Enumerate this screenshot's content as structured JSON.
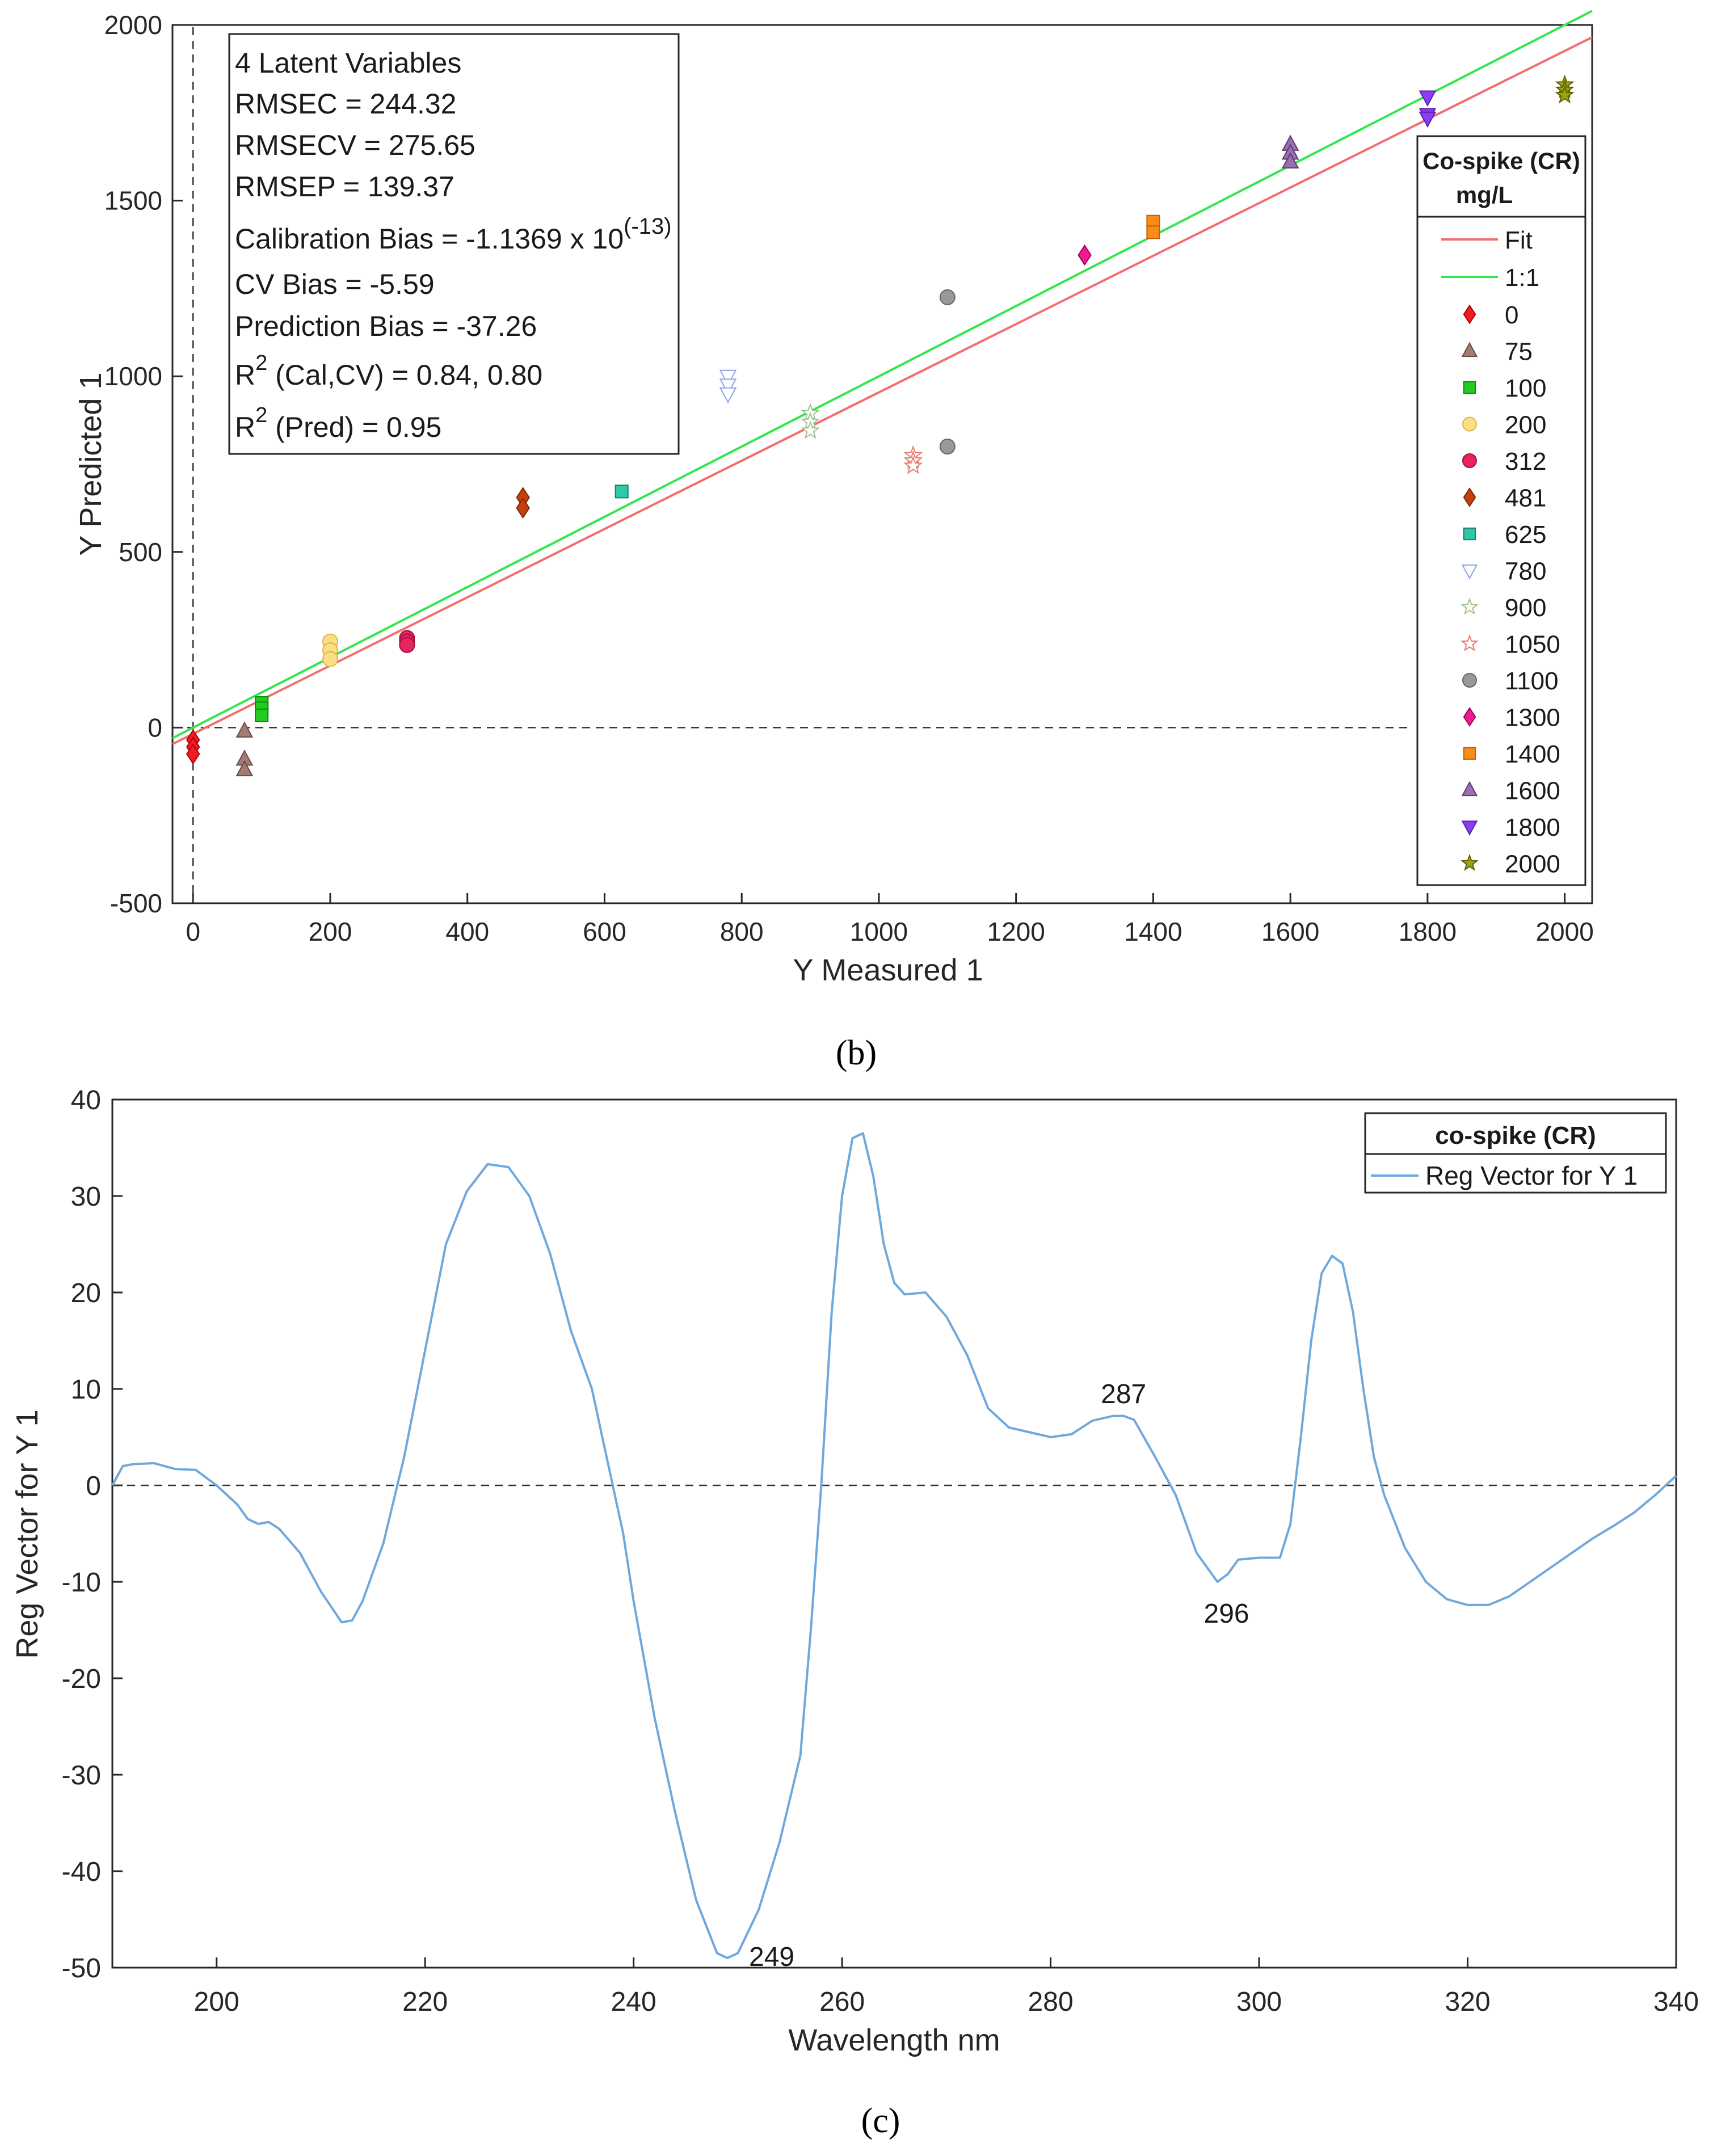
{
  "chart_data": [
    {
      "id": "b",
      "type": "scatter",
      "panel_label": "(b)",
      "xlabel": "Y Measured 1",
      "ylabel": "Y Predicted 1",
      "xlim": [
        -30,
        2040
      ],
      "ylim": [
        -500,
        2000
      ],
      "xticks": [
        0,
        200,
        400,
        600,
        800,
        1000,
        1200,
        1400,
        1600,
        1800,
        2000
      ],
      "yticks": [
        -500,
        0,
        500,
        1000,
        1500,
        2000
      ],
      "stats": {
        "line1": "4 Latent Variables",
        "line2": "RMSEC = 244.32",
        "line3": "RMSECV = 275.65",
        "line4": "RMSEP = 139.37",
        "calbias_text": "Calibration Bias = -1.1369 x 10",
        "calbias_exp": "(-13)",
        "line6": "CV Bias = -5.59",
        "line7": "Prediction Bias = -37.26",
        "r2_label": "R",
        "r2_sup": "2",
        "r2cal_text": " (Cal,CV) = 0.84, 0.80",
        "r2pred_text": " (Pred) = 0.95"
      },
      "legend": {
        "title1": "Co-spike (CR)",
        "title2": "mg/L",
        "fit_label": "Fit",
        "one_label": "1:1"
      },
      "fit_line": {
        "color": "#f26d6d",
        "points": [
          [
            -30,
            -47
          ],
          [
            2040,
            1965
          ]
        ]
      },
      "one_to_one": {
        "color": "#33e64d",
        "points": [
          [
            -30,
            -30
          ],
          [
            2040,
            2040
          ]
        ]
      },
      "series": [
        {
          "name": "0",
          "marker": "diamond",
          "color": "#ee1c25",
          "stroke": "#b30000",
          "points": [
            [
              0,
              -35
            ],
            [
              0,
              -55
            ],
            [
              0,
              -75
            ]
          ]
        },
        {
          "name": "75",
          "marker": "triangle-up",
          "color": "#a37a74",
          "stroke": "#6b4a45",
          "points": [
            [
              75,
              -10
            ],
            [
              75,
              -90
            ],
            [
              75,
              -120
            ]
          ]
        },
        {
          "name": "100",
          "marker": "square",
          "color": "#22cc22",
          "stroke": "#118811",
          "points": [
            [
              100,
              70
            ],
            [
              100,
              55
            ],
            [
              100,
              35
            ]
          ]
        },
        {
          "name": "200",
          "marker": "circle",
          "color": "#fbdf82",
          "stroke": "#d9b650",
          "points": [
            [
              200,
              245
            ],
            [
              200,
              220
            ],
            [
              200,
              195
            ]
          ]
        },
        {
          "name": "312",
          "marker": "circle",
          "color": "#e8245c",
          "stroke": "#a01040",
          "points": [
            [
              312,
              255
            ],
            [
              312,
              245
            ],
            [
              312,
              235
            ]
          ]
        },
        {
          "name": "481",
          "marker": "diamond",
          "color": "#c2410c",
          "stroke": "#7c2608",
          "points": [
            [
              481,
              655
            ],
            [
              481,
              625
            ]
          ]
        },
        {
          "name": "625",
          "marker": "square",
          "color": "#2fc9a8",
          "stroke": "#15806a",
          "points": [
            [
              625,
              672
            ]
          ]
        },
        {
          "name": "780",
          "marker": "triangle-down",
          "color": "#ffffff",
          "stroke": "#8fa3e8",
          "points": [
            [
              780,
              1000
            ],
            [
              780,
              975
            ],
            [
              780,
              950
            ]
          ]
        },
        {
          "name": "900",
          "marker": "star",
          "color": "#ffffff",
          "stroke": "#9ec28a",
          "points": [
            [
              900,
              895
            ],
            [
              900,
              870
            ],
            [
              900,
              845
            ]
          ]
        },
        {
          "name": "1050",
          "marker": "star",
          "color": "#ffffff",
          "stroke": "#ea7a6e",
          "points": [
            [
              1050,
              775
            ],
            [
              1050,
              760
            ],
            [
              1050,
              745
            ]
          ]
        },
        {
          "name": "1100",
          "marker": "circle",
          "color": "#999999",
          "stroke": "#666666",
          "points": [
            [
              1100,
              1225
            ],
            [
              1100,
              800
            ]
          ]
        },
        {
          "name": "1300",
          "marker": "diamond",
          "color": "#ee1c8e",
          "stroke": "#a00060",
          "points": [
            [
              1300,
              1345
            ]
          ]
        },
        {
          "name": "1400",
          "marker": "square",
          "color": "#fb8c1a",
          "stroke": "#c06000",
          "points": [
            [
              1400,
              1440
            ],
            [
              1400,
              1410
            ]
          ]
        },
        {
          "name": "1600",
          "marker": "triangle-up",
          "color": "#9b6eb0",
          "stroke": "#5e3a72",
          "points": [
            [
              1600,
              1660
            ],
            [
              1600,
              1635
            ],
            [
              1600,
              1610
            ]
          ]
        },
        {
          "name": "1800",
          "marker": "triangle-down",
          "color": "#8a3df2",
          "stroke": "#5a1fb0",
          "points": [
            [
              1800,
              1795
            ],
            [
              1800,
              1745
            ],
            [
              1800,
              1735
            ]
          ]
        },
        {
          "name": "2000",
          "marker": "star",
          "color": "#9aa112",
          "stroke": "#5e6200",
          "points": [
            [
              2000,
              1830
            ],
            [
              2000,
              1815
            ],
            [
              2000,
              1800
            ]
          ]
        }
      ]
    },
    {
      "id": "c",
      "type": "line",
      "panel_label": "(c)",
      "xlabel": "Wavelength nm",
      "ylabel": "Reg Vector for Y 1",
      "xlim": [
        190,
        340
      ],
      "ylim": [
        -50,
        40
      ],
      "xticks": [
        200,
        220,
        240,
        260,
        280,
        300,
        320,
        340
      ],
      "yticks": [
        -50,
        -40,
        -30,
        -20,
        -10,
        0,
        10,
        20,
        30,
        40
      ],
      "legend": {
        "title": "co-spike (CR)",
        "series_label": "Reg Vector for Y 1"
      },
      "annotations": [
        {
          "x": 287,
          "y": 7,
          "text": "287"
        },
        {
          "x": 296,
          "y": -10,
          "text": "296"
        },
        {
          "x": 249,
          "y": -49,
          "text": "249"
        }
      ],
      "series": [
        {
          "name": "Reg Vector for Y 1",
          "color": "#6fa8dc",
          "points": [
            [
              190,
              0
            ],
            [
              191,
              2
            ],
            [
              192,
              2.2
            ],
            [
              194,
              2.3
            ],
            [
              196,
              1.7
            ],
            [
              198,
              1.6
            ],
            [
              200,
              0
            ],
            [
              202,
              -2
            ],
            [
              203,
              -3.5
            ],
            [
              204,
              -4
            ],
            [
              205,
              -3.8
            ],
            [
              206,
              -4.5
            ],
            [
              208,
              -7
            ],
            [
              210,
              -11
            ],
            [
              212,
              -14.2
            ],
            [
              213,
              -14
            ],
            [
              214,
              -12
            ],
            [
              216,
              -6
            ],
            [
              218,
              3
            ],
            [
              220,
              14
            ],
            [
              222,
              25
            ],
            [
              224,
              30.5
            ],
            [
              226,
              33.3
            ],
            [
              228,
              33
            ],
            [
              230,
              30
            ],
            [
              232,
              24
            ],
            [
              234,
              16
            ],
            [
              236,
              10
            ],
            [
              237,
              5
            ],
            [
              238,
              0
            ],
            [
              239,
              -5
            ],
            [
              240,
              -12
            ],
            [
              242,
              -24
            ],
            [
              244,
              -34
            ],
            [
              246,
              -43
            ],
            [
              248,
              -48.5
            ],
            [
              249,
              -49
            ],
            [
              250,
              -48.5
            ],
            [
              252,
              -44
            ],
            [
              254,
              -37
            ],
            [
              256,
              -28
            ],
            [
              257,
              -15
            ],
            [
              258,
              0
            ],
            [
              259,
              18
            ],
            [
              260,
              30
            ],
            [
              261,
              36
            ],
            [
              262,
              36.5
            ],
            [
              263,
              32
            ],
            [
              264,
              25
            ],
            [
              265,
              21
            ],
            [
              266,
              19.8
            ],
            [
              268,
              20
            ],
            [
              270,
              17.5
            ],
            [
              272,
              13.5
            ],
            [
              274,
              8
            ],
            [
              276,
              6
            ],
            [
              278,
              5.5
            ],
            [
              280,
              5
            ],
            [
              282,
              5.3
            ],
            [
              284,
              6.7
            ],
            [
              286,
              7.2
            ],
            [
              287,
              7.2
            ],
            [
              288,
              6.8
            ],
            [
              290,
              3
            ],
            [
              292,
              -1
            ],
            [
              294,
              -7
            ],
            [
              296,
              -10
            ],
            [
              297,
              -9.2
            ],
            [
              298,
              -7.7
            ],
            [
              300,
              -7.5
            ],
            [
              302,
              -7.5
            ],
            [
              303,
              -4
            ],
            [
              304,
              5
            ],
            [
              305,
              15
            ],
            [
              306,
              22
            ],
            [
              307,
              23.8
            ],
            [
              308,
              23
            ],
            [
              309,
              18
            ],
            [
              310,
              10
            ],
            [
              311,
              3
            ],
            [
              312,
              -1
            ],
            [
              314,
              -6.5
            ],
            [
              316,
              -10
            ],
            [
              318,
              -11.8
            ],
            [
              320,
              -12.4
            ],
            [
              322,
              -12.4
            ],
            [
              324,
              -11.5
            ],
            [
              326,
              -10
            ],
            [
              328,
              -8.5
            ],
            [
              330,
              -7
            ],
            [
              332,
              -5.5
            ],
            [
              334,
              -4.2
            ],
            [
              336,
              -2.8
            ],
            [
              338,
              -1
            ],
            [
              340,
              1
            ]
          ]
        }
      ]
    }
  ]
}
